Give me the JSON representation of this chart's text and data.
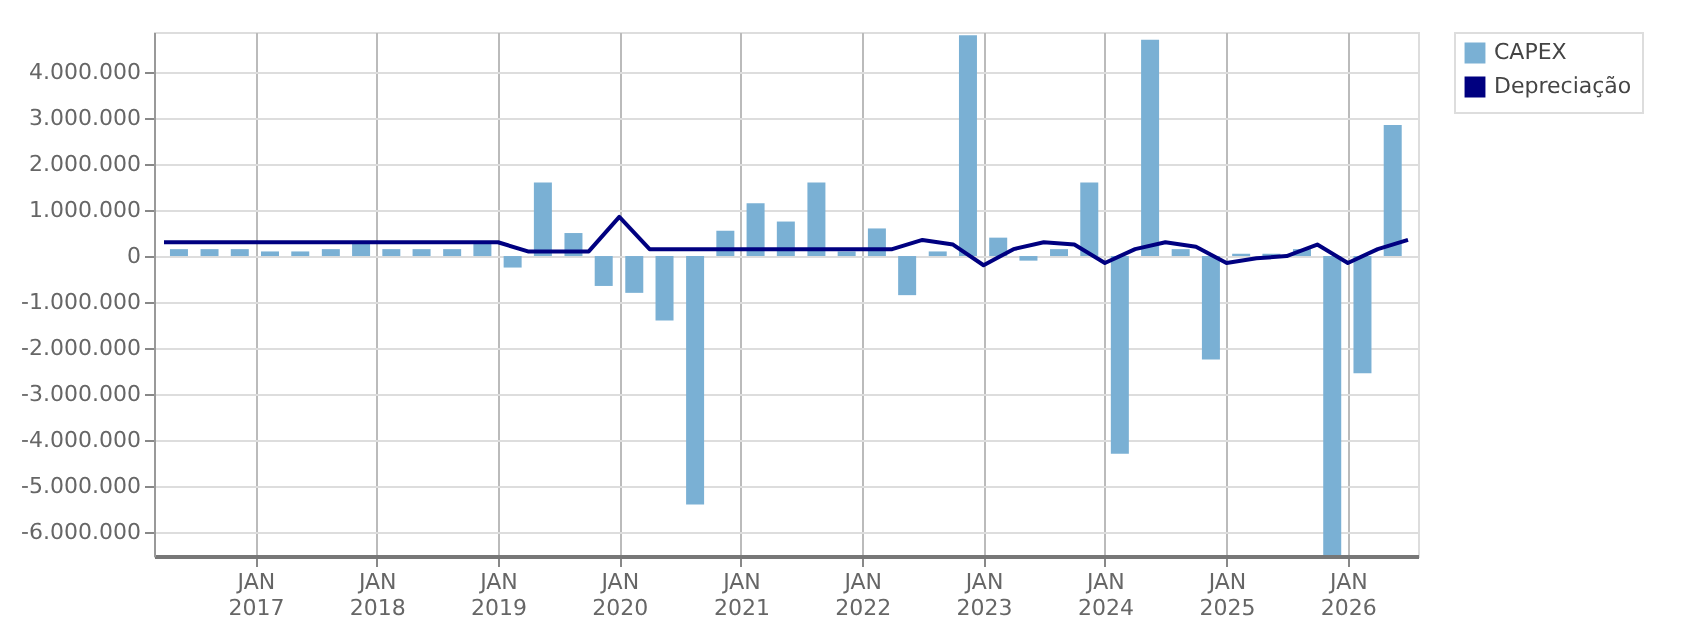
{
  "chart_data": {
    "type": "bar",
    "legend": "top right",
    "grid": true,
    "xlim": [
      "2016-04-01",
      "2026-07-01"
    ],
    "xticks": [
      {
        "value": "2017-01-01",
        "label": "JAN 2017"
      },
      {
        "value": "2018-01-01",
        "label": "JAN 2018"
      },
      {
        "value": "2019-01-01",
        "label": "JAN 2019"
      },
      {
        "value": "2020-01-01",
        "label": "JAN 2020"
      },
      {
        "value": "2021-01-01",
        "label": "JAN 2021"
      },
      {
        "value": "2022-01-01",
        "label": "JAN 2022"
      },
      {
        "value": "2023-01-01",
        "label": "JAN 2023"
      },
      {
        "value": "2024-01-01",
        "label": "JAN 2024"
      },
      {
        "value": "2025-01-01",
        "label": "JAN 2025"
      },
      {
        "value": "2026-01-01",
        "label": "JAN 2026"
      }
    ],
    "ylim": [
      -6520000,
      4870000
    ],
    "yticks": [
      {
        "value": -6000000,
        "label": "-6.000.000"
      },
      {
        "value": -5000000,
        "label": "-5.000.000"
      },
      {
        "value": -4000000,
        "label": "-4.000.000"
      },
      {
        "value": -3000000,
        "label": "-3.000.000"
      },
      {
        "value": -2000000,
        "label": "-2.000.000"
      },
      {
        "value": -1000000,
        "label": "-1.000.000"
      },
      0,
      {
        "value": 1000000,
        "label": "1.000.000"
      },
      {
        "value": 2000000,
        "label": "2.000.000"
      },
      {
        "value": 3000000,
        "label": "3.000.000"
      },
      {
        "value": 4000000,
        "label": "4.000.000"
      }
    ],
    "x": [
      "2016-05-16",
      "2016-08-16",
      "2016-11-15",
      "2017-02-14",
      "2017-05-16",
      "2017-08-16",
      "2017-11-15",
      "2018-02-14",
      "2018-05-16",
      "2018-08-16",
      "2018-11-15",
      "2019-02-14",
      "2019-05-16",
      "2019-08-16",
      "2019-11-15",
      "2020-02-15",
      "2020-05-16",
      "2020-08-16",
      "2020-11-15",
      "2021-02-14",
      "2021-05-16",
      "2021-08-16",
      "2021-11-15",
      "2022-02-14",
      "2022-05-16",
      "2022-08-16",
      "2022-11-15",
      "2023-02-14",
      "2023-05-16",
      "2023-08-16",
      "2023-11-15",
      "2024-02-15",
      "2024-05-16",
      "2024-08-16",
      "2024-11-15",
      "2025-02-14",
      "2025-05-16",
      "2025-08-16",
      "2025-11-15",
      "2026-02-14",
      "2026-05-16"
    ],
    "series": [
      {
        "name": "CAPEX",
        "color": "#7ab0d4",
        "values": [
          150000,
          150000,
          150000,
          100000,
          100000,
          150000,
          300000,
          150000,
          150000,
          150000,
          300000,
          -250000,
          1600000,
          500000,
          -650000,
          -800000,
          -1400000,
          -5400000,
          550000,
          1150000,
          750000,
          1600000,
          100000,
          600000,
          -850000,
          100000,
          4800000,
          400000,
          -100000,
          150000,
          1600000,
          -4300000,
          4700000,
          150000,
          -2250000,
          50000,
          50000,
          150000,
          -6500000,
          -2550000,
          2850000
        ]
      },
      {
        "name": "Depreciação",
        "type": "line",
        "color": "#000080",
        "line_style": "solid",
        "x": [
          "2016-04-01",
          "2016-07-01",
          "2016-10-01",
          "2017-01-01",
          "2017-04-01",
          "2017-07-01",
          "2017-10-01",
          "2018-01-01",
          "2018-04-01",
          "2018-07-01",
          "2018-10-01",
          "2019-01-01",
          "2019-04-01",
          "2019-07-01",
          "2019-10-01",
          "2020-01-01",
          "2020-04-01",
          "2020-07-01",
          "2020-10-01",
          "2021-01-01",
          "2021-04-01",
          "2021-07-01",
          "2021-10-01",
          "2022-01-01",
          "2022-04-01",
          "2022-07-01",
          "2022-10-01",
          "2023-01-01",
          "2023-04-01",
          "2023-07-01",
          "2023-10-01",
          "2024-01-01",
          "2024-04-01",
          "2024-07-01",
          "2024-10-01",
          "2025-01-01",
          "2025-04-01",
          "2025-07-01",
          "2025-10-01",
          "2026-01-01",
          "2026-04-01",
          "2026-07-01"
        ],
        "values": [
          300000,
          300000,
          300000,
          300000,
          300000,
          300000,
          300000,
          300000,
          300000,
          300000,
          300000,
          300000,
          100000,
          100000,
          100000,
          850000,
          150000,
          150000,
          150000,
          150000,
          150000,
          150000,
          150000,
          150000,
          150000,
          350000,
          250000,
          -200000,
          150000,
          300000,
          250000,
          -150000,
          150000,
          300000,
          200000,
          -150000,
          -50000,
          0,
          250000,
          -150000,
          150000,
          350000
        ]
      }
    ]
  }
}
